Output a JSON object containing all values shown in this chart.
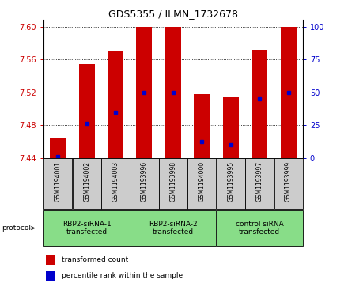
{
  "title": "GDS5355 / ILMN_1732678",
  "samples": [
    "GSM1194001",
    "GSM1194002",
    "GSM1194003",
    "GSM1193996",
    "GSM1193998",
    "GSM1194000",
    "GSM1193995",
    "GSM1193997",
    "GSM1193999"
  ],
  "red_values": [
    7.464,
    7.554,
    7.57,
    7.6,
    7.6,
    7.518,
    7.514,
    7.572,
    7.6
  ],
  "blue_values": [
    7.442,
    7.482,
    7.496,
    7.52,
    7.52,
    7.46,
    7.456,
    7.512,
    7.52
  ],
  "bar_base": 7.44,
  "ylim_left": [
    7.44,
    7.608
  ],
  "ylim_right": [
    0,
    105
  ],
  "yticks_left": [
    7.44,
    7.48,
    7.52,
    7.56,
    7.6
  ],
  "yticks_right": [
    0,
    25,
    50,
    75,
    100
  ],
  "groups": [
    {
      "label": "RBP2-siRNA-1\ntransfected",
      "start": 0,
      "end": 3
    },
    {
      "label": "RBP2-siRNA-2\ntransfected",
      "start": 3,
      "end": 6
    },
    {
      "label": "control siRNA\ntransfected",
      "start": 6,
      "end": 9
    }
  ],
  "protocol_label": "protocol",
  "legend_red": "transformed count",
  "legend_blue": "percentile rank within the sample",
  "bar_color": "#cc0000",
  "blue_color": "#0000cc",
  "group_bg_color": "#88dd88",
  "sample_bg_color": "#cccccc",
  "bar_width": 0.55,
  "blue_marker_size": 3.5,
  "title_fontsize": 9,
  "tick_fontsize": 7,
  "sample_fontsize": 5.5,
  "group_fontsize": 6.5,
  "legend_fontsize": 6.5
}
